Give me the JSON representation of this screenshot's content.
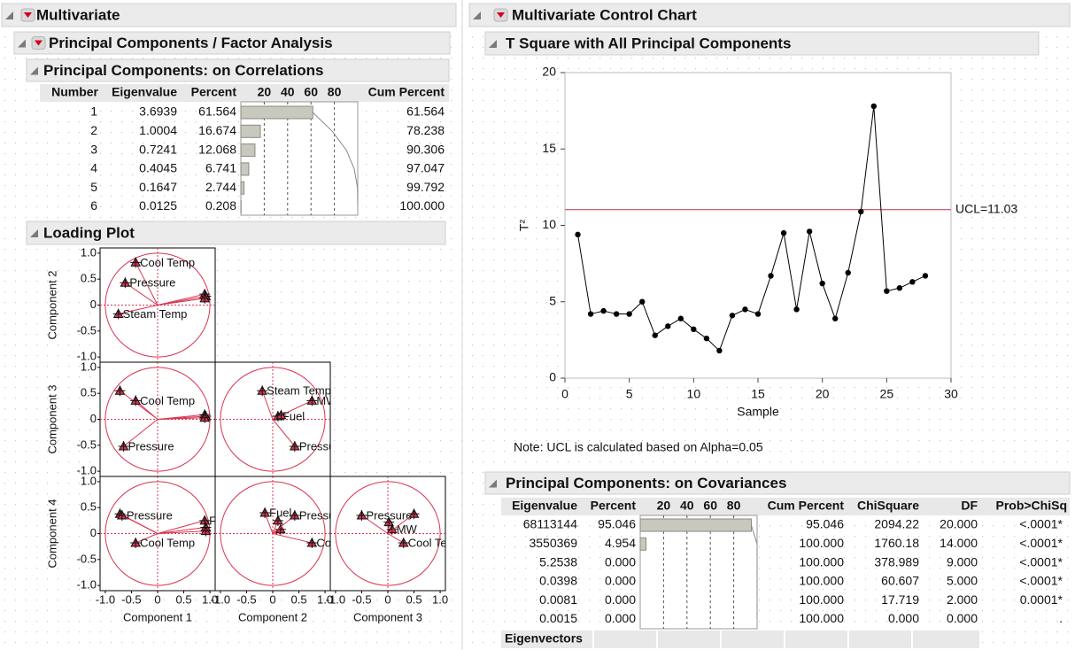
{
  "left": {
    "title": "Multivariate",
    "subtitle": "Principal Components / Factor Analysis",
    "correlations": {
      "title": "Principal Components: on Correlations",
      "columns": [
        "Number",
        "Eigenvalue",
        "Percent",
        "Cum Percent"
      ],
      "bar_ticks": [
        20,
        40,
        60,
        80
      ],
      "number": [
        1,
        2,
        3,
        4,
        5,
        6
      ],
      "eigenvalue": [
        3.6939,
        1.0004,
        0.7241,
        0.4045,
        0.1647,
        0.0125
      ],
      "percent": [
        61.564,
        16.674,
        12.068,
        6.741,
        2.744,
        0.208
      ],
      "cum_percent": [
        61.564,
        78.238,
        90.306,
        97.047,
        99.792,
        {
          "value": 100,
          "label": "100.000"
        }
      ]
    },
    "loading_plot": {
      "title": "Loading Plot",
      "lim": [
        -1.1,
        1.1
      ],
      "ticks": [
        {
          "value": -1,
          "label": "-1.0"
        },
        -0.5,
        0,
        0.5,
        {
          "value": 1,
          "label": "1.0"
        }
      ],
      "x_labels": [
        "Component 1",
        "Component 2",
        "Component 3"
      ],
      "y_labels": [
        "Component 2",
        "Component 3",
        "Component 4"
      ],
      "panels": [
        [
          {
            "points": [
              {
                "x": -0.42,
                "y": 0.82,
                "label": "Cool Temp"
              },
              {
                "x": -0.62,
                "y": 0.43,
                "label": "Pressure"
              },
              {
                "x": -0.75,
                "y": -0.17,
                "label": "Steam Temp"
              },
              {
                "x": 0.9,
                "y": 0.21
              },
              {
                "x": 0.92,
                "y": 0.17
              },
              {
                "x": 0.9,
                "y": 0.13
              }
            ]
          }
        ],
        [
          {
            "points": [
              {
                "x": -0.72,
                "y": 0.55
              },
              {
                "x": -0.42,
                "y": 0.36,
                "label": "Cool Temp"
              },
              {
                "x": -0.65,
                "y": -0.52,
                "label": "Pressure"
              },
              {
                "x": 0.9,
                "y": 0.09
              },
              {
                "x": 0.92,
                "y": 0.06
              },
              {
                "x": 0.9,
                "y": 0.03
              }
            ]
          },
          {
            "points": [
              {
                "x": -0.2,
                "y": 0.55,
                "label": "Steam Temp"
              },
              {
                "x": 0.75,
                "y": 0.36,
                "label": "MW"
              },
              {
                "x": 0.1,
                "y": 0.06,
                "label": "Fuel"
              },
              {
                "x": 0.16,
                "y": 0.08
              },
              {
                "x": 0.42,
                "y": -0.52,
                "label": "Pressure"
              }
            ]
          }
        ],
        [
          {
            "points": [
              {
                "x": -0.72,
                "y": 0.38
              },
              {
                "x": -0.68,
                "y": 0.35,
                "label": "Pressure"
              },
              {
                "x": -0.42,
                "y": -0.18,
                "label": "Cool Temp"
              },
              {
                "x": 0.9,
                "y": 0.25,
                "label": "Fuel"
              },
              {
                "x": 0.92,
                "y": 0.12
              },
              {
                "x": 0.92,
                "y": 0.05
              }
            ]
          },
          {
            "points": [
              {
                "x": -0.15,
                "y": 0.4,
                "label": "Fuel"
              },
              {
                "x": 0.1,
                "y": 0.25
              },
              {
                "x": 0.15,
                "y": 0.08
              },
              {
                "x": 0.42,
                "y": 0.35,
                "label": "Pressure"
              },
              {
                "x": 0.75,
                "y": -0.18,
                "label": "Cool Temp"
              }
            ]
          },
          {
            "points": [
              {
                "x": -0.5,
                "y": 0.35,
                "label": "Pressure"
              },
              {
                "x": 0.02,
                "y": 0.22
              },
              {
                "x": 0.08,
                "y": 0.08,
                "label": "MW"
              },
              {
                "x": 0.5,
                "y": 0.38
              },
              {
                "x": 0.3,
                "y": -0.18,
                "label": "Cool Temp"
              }
            ]
          }
        ]
      ]
    }
  },
  "right": {
    "title": "Multivariate Control Chart",
    "control_chart": {
      "title": "T Square with All Principal Components",
      "x": [
        1,
        2,
        3,
        4,
        5,
        6,
        7,
        8,
        9,
        10,
        11,
        12,
        13,
        14,
        15,
        16,
        17,
        18,
        19,
        20,
        21,
        22,
        23,
        24,
        25,
        26,
        27,
        28
      ],
      "values": [
        9.4,
        4.2,
        4.4,
        4.2,
        4.2,
        5.0,
        2.8,
        3.4,
        3.9,
        3.2,
        2.6,
        1.8,
        4.1,
        4.5,
        4.2,
        6.7,
        9.5,
        4.5,
        9.6,
        6.2,
        3.9,
        6.9,
        10.9,
        17.8,
        5.7,
        5.9,
        6.3,
        6.7
      ],
      "xlim": [
        0,
        30
      ],
      "xticks": [
        0,
        5,
        10,
        15,
        20,
        25,
        30
      ],
      "ylim": [
        0,
        20
      ],
      "yticks": [
        0,
        5,
        10,
        15,
        20
      ],
      "x_label": "Sample",
      "y_label": "T²",
      "color": "#000000",
      "ucl": {
        "value": 11.03,
        "label": "UCL=11.03"
      },
      "ucl_color": "#c0304a",
      "note": "Note: UCL is calculated based on Alpha=0.05"
    },
    "covariances": {
      "title": "Principal Components: on Covariances",
      "columns": [
        "Eigenvalue",
        "Percent",
        "Cum Percent",
        "ChiSquare",
        "DF",
        "Prob>ChiSq"
      ],
      "bar_ticks": [
        20,
        40,
        60,
        80
      ],
      "eigenvalue": [
        68113144,
        3550369,
        5.2538,
        0.0398,
        0.0081,
        0.0015
      ],
      "percent": [
        95.046,
        4.954,
        {
          "value": 0,
          "label": "0.000"
        },
        {
          "value": 0,
          "label": "0.000"
        },
        {
          "value": 0,
          "label": "0.000"
        },
        {
          "value": 0,
          "label": "0.000"
        }
      ],
      "cum_percent": [
        95.046,
        {
          "value": 100,
          "label": "100.000"
        },
        {
          "value": 100,
          "label": "100.000"
        },
        {
          "value": 100,
          "label": "100.000"
        },
        {
          "value": 100,
          "label": "100.000"
        },
        {
          "value": 100,
          "label": "100.000"
        }
      ],
      "chisquare": [
        "2094.22",
        "1760.18",
        "378.989",
        "60.607",
        "17.719",
        "0.000"
      ],
      "df": [
        "20.000",
        "14.000",
        "9.000",
        "5.000",
        "2.000",
        "0.000"
      ],
      "prob": [
        "<.0001*",
        "<.0001*",
        "<.0001*",
        "<.0001*",
        "0.0001*",
        "."
      ],
      "eigenvectors": "Eigenvectors"
    }
  }
}
